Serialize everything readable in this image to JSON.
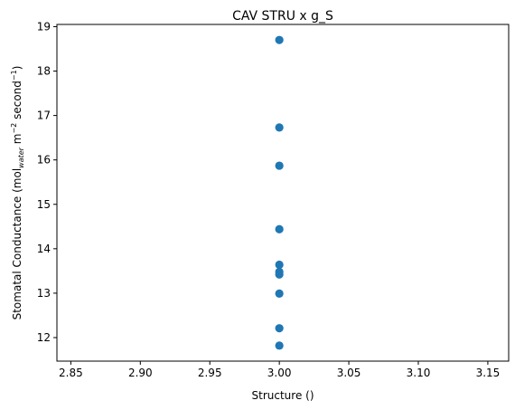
{
  "chart_data": {
    "type": "scatter",
    "title": "CAV STRU x g_S",
    "xlabel": "Structure ()",
    "ylabel": {
      "prefix": "Stomatal Conductance (mol",
      "sub": "water",
      "mid1": " m",
      "sup1": "−2",
      "mid2": " second",
      "sup2": "−1",
      "suffix": ")"
    },
    "xlim": [
      2.84,
      3.165
    ],
    "ylim": [
      11.47,
      19.05
    ],
    "xticks": [
      "2.85",
      "2.90",
      "2.95",
      "3.00",
      "3.05",
      "3.10",
      "3.15"
    ],
    "yticks": [
      "12",
      "13",
      "14",
      "15",
      "16",
      "17",
      "18",
      "19"
    ],
    "marker_color": "#1f77b4",
    "grid": false,
    "points": [
      {
        "x": 3.0,
        "y": 18.7
      },
      {
        "x": 3.0,
        "y": 16.73
      },
      {
        "x": 3.0,
        "y": 15.87
      },
      {
        "x": 3.0,
        "y": 14.44
      },
      {
        "x": 3.0,
        "y": 13.64
      },
      {
        "x": 3.0,
        "y": 13.48
      },
      {
        "x": 3.0,
        "y": 13.42
      },
      {
        "x": 3.0,
        "y": 12.99
      },
      {
        "x": 3.0,
        "y": 12.21
      },
      {
        "x": 3.0,
        "y": 11.82
      }
    ]
  }
}
